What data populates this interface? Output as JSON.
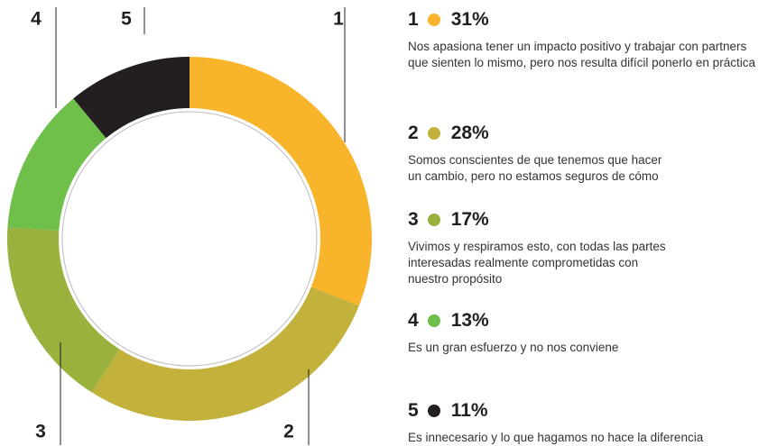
{
  "chart_data": {
    "type": "donut",
    "categories": [
      "1",
      "2",
      "3",
      "4",
      "5"
    ],
    "values": [
      31,
      28,
      17,
      13,
      11
    ],
    "value_labels": [
      "31%",
      "28%",
      "17%",
      "13%",
      "11%"
    ],
    "colors": [
      "#f8b52c",
      "#c2b13b",
      "#99b23e",
      "#6ec04b",
      "#231f20"
    ],
    "descriptions": [
      "Nos apasiona tener un impacto positivo y trabajar con partners que sienten lo mismo, pero nos resulta difícil ponerlo en práctica",
      "Somos conscientes de que tenemos que hacer un cambio, pero no estamos seguros de cómo",
      "Vivimos y respiramos esto, con todas las partes interesadas realmente comprometidas con nuestro propósito",
      "Es un gran esfuerzo y no nos conviene",
      "Es innecesario y lo que hagamos no hace la diferencia"
    ]
  }
}
